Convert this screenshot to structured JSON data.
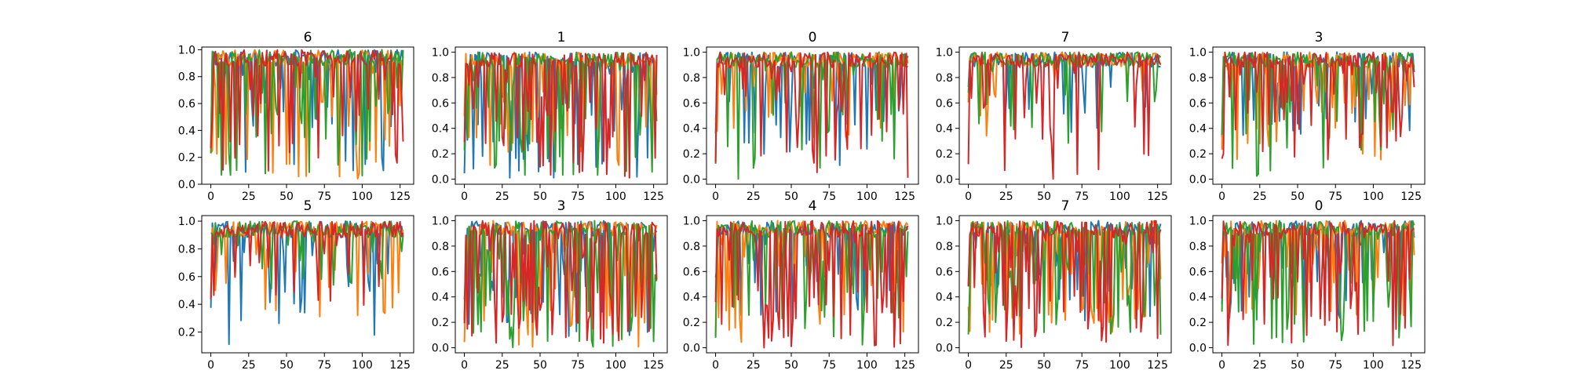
{
  "chart_data": [
    {
      "type": "line",
      "title": "6",
      "xticks": [
        0,
        25,
        50,
        75,
        100,
        125
      ],
      "yticks": [
        "0.0",
        "0.2",
        "0.4",
        "0.6",
        "0.8",
        "1.0"
      ],
      "xlim": [
        -6,
        134
      ],
      "ylim": [
        0,
        1.02
      ],
      "seed": 11,
      "series": [
        {
          "color": "#1f77b4",
          "dip_prob": 0.22,
          "floor": 0.02
        },
        {
          "color": "#ff7f0e",
          "dip_prob": 0.25,
          "floor": 0.03
        },
        {
          "color": "#2ca02c",
          "dip_prob": 0.28,
          "floor": 0.06
        },
        {
          "color": "#d62728",
          "dip_prob": 0.3,
          "floor": 0.1
        }
      ]
    },
    {
      "type": "line",
      "title": "1",
      "xticks": [
        0,
        25,
        50,
        75,
        100,
        125
      ],
      "yticks": [
        "0.0",
        "0.2",
        "0.4",
        "0.6",
        "0.8",
        "1.0"
      ],
      "xlim": [
        -6,
        134
      ],
      "ylim": [
        -0.04,
        1.04
      ],
      "seed": 23,
      "series": [
        {
          "color": "#1f77b4",
          "dip_prob": 0.35,
          "floor": 0.0
        },
        {
          "color": "#ff7f0e",
          "dip_prob": 0.35,
          "floor": 0.05
        },
        {
          "color": "#2ca02c",
          "dip_prob": 0.4,
          "floor": 0.0
        },
        {
          "color": "#d62728",
          "dip_prob": 0.45,
          "floor": 0.0
        }
      ]
    },
    {
      "type": "line",
      "title": "0",
      "xticks": [
        0,
        25,
        50,
        75,
        100,
        125
      ],
      "yticks": [
        "0.0",
        "0.2",
        "0.4",
        "0.6",
        "0.8",
        "1.0"
      ],
      "xlim": [
        -6,
        134
      ],
      "ylim": [
        -0.04,
        1.04
      ],
      "seed": 37,
      "series": [
        {
          "color": "#1f77b4",
          "dip_prob": 0.3,
          "floor": 0.1
        },
        {
          "color": "#ff7f0e",
          "dip_prob": 0.2,
          "floor": 0.3
        },
        {
          "color": "#2ca02c",
          "dip_prob": 0.2,
          "floor": 0.0
        },
        {
          "color": "#d62728",
          "dip_prob": 0.25,
          "floor": 0.0
        }
      ]
    },
    {
      "type": "line",
      "title": "7",
      "xticks": [
        0,
        25,
        50,
        75,
        100,
        125
      ],
      "yticks": [
        "0.0",
        "0.2",
        "0.4",
        "0.6",
        "0.8",
        "1.0"
      ],
      "xlim": [
        -6,
        134
      ],
      "ylim": [
        -0.04,
        1.04
      ],
      "seed": 41,
      "series": [
        {
          "color": "#1f77b4",
          "dip_prob": 0.15,
          "floor": 0.3
        },
        {
          "color": "#ff7f0e",
          "dip_prob": 0.12,
          "floor": 0.3
        },
        {
          "color": "#2ca02c",
          "dip_prob": 0.15,
          "floor": 0.2
        },
        {
          "color": "#d62728",
          "dip_prob": 0.2,
          "floor": 0.0
        }
      ]
    },
    {
      "type": "line",
      "title": "3",
      "xticks": [
        0,
        25,
        50,
        75,
        100,
        125
      ],
      "yticks": [
        "0.0",
        "0.2",
        "0.4",
        "0.6",
        "0.8",
        "1.0"
      ],
      "xlim": [
        -6,
        134
      ],
      "ylim": [
        -0.04,
        1.04
      ],
      "seed": 53,
      "series": [
        {
          "color": "#1f77b4",
          "dip_prob": 0.25,
          "floor": 0.3
        },
        {
          "color": "#ff7f0e",
          "dip_prob": 0.35,
          "floor": 0.15
        },
        {
          "color": "#2ca02c",
          "dip_prob": 0.2,
          "floor": 0.0
        },
        {
          "color": "#d62728",
          "dip_prob": 0.35,
          "floor": 0.15
        }
      ]
    },
    {
      "type": "line",
      "title": "5",
      "xticks": [
        0,
        25,
        50,
        75,
        100,
        125
      ],
      "yticks": [
        "0.2",
        "0.4",
        "0.6",
        "0.8",
        "1.0"
      ],
      "xlim": [
        -6,
        134
      ],
      "ylim": [
        0.05,
        1.04
      ],
      "seed": 61,
      "series": [
        {
          "color": "#1f77b4",
          "dip_prob": 0.25,
          "floor": 0.1
        },
        {
          "color": "#ff7f0e",
          "dip_prob": 0.2,
          "floor": 0.3
        },
        {
          "color": "#2ca02c",
          "dip_prob": 0.15,
          "floor": 0.45
        },
        {
          "color": "#d62728",
          "dip_prob": 0.15,
          "floor": 0.33
        }
      ]
    },
    {
      "type": "line",
      "title": "3",
      "xticks": [
        0,
        25,
        50,
        75,
        100,
        125
      ],
      "yticks": [
        "0.0",
        "0.2",
        "0.4",
        "0.6",
        "0.8",
        "1.0"
      ],
      "xlim": [
        -6,
        134
      ],
      "ylim": [
        -0.04,
        1.04
      ],
      "seed": 71,
      "series": [
        {
          "color": "#1f77b4",
          "dip_prob": 0.35,
          "floor": 0.0
        },
        {
          "color": "#ff7f0e",
          "dip_prob": 0.35,
          "floor": 0.0
        },
        {
          "color": "#2ca02c",
          "dip_prob": 0.45,
          "floor": 0.0
        },
        {
          "color": "#d62728",
          "dip_prob": 0.45,
          "floor": 0.0
        }
      ]
    },
    {
      "type": "line",
      "title": "4",
      "xticks": [
        0,
        25,
        50,
        75,
        100,
        125
      ],
      "yticks": [
        "0.0",
        "0.2",
        "0.4",
        "0.6",
        "0.8",
        "1.0"
      ],
      "xlim": [
        -6,
        134
      ],
      "ylim": [
        -0.04,
        1.04
      ],
      "seed": 83,
      "series": [
        {
          "color": "#1f77b4",
          "dip_prob": 0.3,
          "floor": 0.2
        },
        {
          "color": "#ff7f0e",
          "dip_prob": 0.3,
          "floor": 0.0
        },
        {
          "color": "#2ca02c",
          "dip_prob": 0.35,
          "floor": 0.0
        },
        {
          "color": "#d62728",
          "dip_prob": 0.4,
          "floor": 0.0
        }
      ]
    },
    {
      "type": "line",
      "title": "7",
      "xticks": [
        0,
        25,
        50,
        75,
        100,
        125
      ],
      "yticks": [
        "0.0",
        "0.2",
        "0.4",
        "0.6",
        "0.8",
        "1.0"
      ],
      "xlim": [
        -6,
        134
      ],
      "ylim": [
        -0.04,
        1.04
      ],
      "seed": 97,
      "series": [
        {
          "color": "#1f77b4",
          "dip_prob": 0.35,
          "floor": 0.2
        },
        {
          "color": "#ff7f0e",
          "dip_prob": 0.4,
          "floor": 0.1
        },
        {
          "color": "#2ca02c",
          "dip_prob": 0.4,
          "floor": 0.1
        },
        {
          "color": "#d62728",
          "dip_prob": 0.45,
          "floor": 0.0
        }
      ]
    },
    {
      "type": "line",
      "title": "0",
      "xticks": [
        0,
        25,
        50,
        75,
        100,
        125
      ],
      "yticks": [
        "0.0",
        "0.2",
        "0.4",
        "0.6",
        "0.8",
        "1.0"
      ],
      "xlim": [
        -6,
        134
      ],
      "ylim": [
        -0.04,
        1.04
      ],
      "seed": 103,
      "series": [
        {
          "color": "#1f77b4",
          "dip_prob": 0.25,
          "floor": 0.2
        },
        {
          "color": "#ff7f0e",
          "dip_prob": 0.3,
          "floor": 0.2
        },
        {
          "color": "#2ca02c",
          "dip_prob": 0.3,
          "floor": 0.0
        },
        {
          "color": "#d62728",
          "dip_prob": 0.35,
          "floor": 0.0
        }
      ]
    }
  ]
}
